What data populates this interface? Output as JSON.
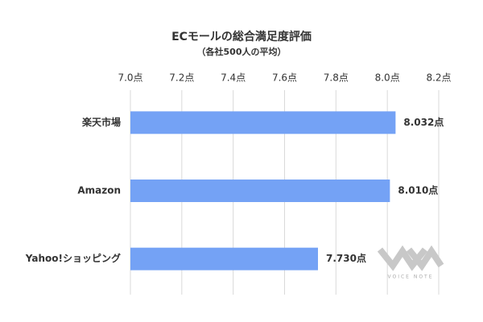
{
  "chart_data": {
    "type": "bar",
    "orientation": "horizontal",
    "title": "ECモールの総合満足度評価",
    "subtitle": "（各社500人の平均）",
    "categories": [
      "楽天市場",
      "Amazon",
      "Yahoo!ショッピング"
    ],
    "values": [
      8.032,
      8.01,
      7.73
    ],
    "value_labels": [
      "8.032点",
      "8.010点",
      "7.730点"
    ],
    "color": "#74a2f5",
    "xlim": [
      7.0,
      8.2
    ],
    "xticks": [
      {
        "value": 7.0,
        "label": "7.0点"
      },
      {
        "value": 7.2,
        "label": "7.2点"
      },
      {
        "value": 7.4,
        "label": "7.4点"
      },
      {
        "value": 7.6,
        "label": "7.6点"
      },
      {
        "value": 7.8,
        "label": "7.8点"
      },
      {
        "value": 8.0,
        "label": "8.0点"
      },
      {
        "value": 8.2,
        "label": "8.2点"
      }
    ],
    "grid": true,
    "watermark": "VOICE NOTE"
  }
}
